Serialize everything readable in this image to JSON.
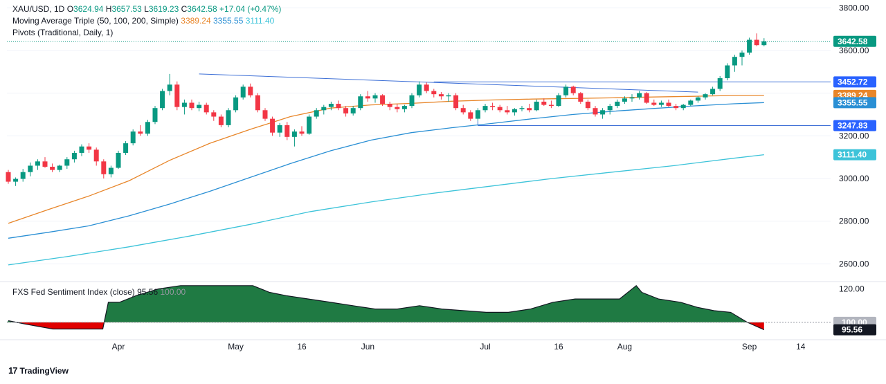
{
  "header": {
    "symbol": "XAU/USD, 1D",
    "o_label": "O",
    "o_value": "3624.94",
    "h_label": "H",
    "h_value": "3657.53",
    "l_label": "L",
    "l_value": "3619.23",
    "c_label": "C",
    "c_value": "3642.58",
    "change": "+17.04 (+0.47%)",
    "ma_label": "Moving Average Triple (50, 100, 200, Simple)",
    "ma50_value": "3389.24",
    "ma100_value": "3355.55",
    "ma200_value": "3111.40",
    "pivots_label": "Pivots (Traditional, Daily, 1)"
  },
  "sentiment": {
    "label": "FXS Fed Sentiment Index (close)",
    "value": "95.56",
    "ref_value": "100.00"
  },
  "brand": {
    "name": "TradingView"
  },
  "colors": {
    "up": "#089981",
    "down": "#f23645",
    "ma50": "#e8862a",
    "ma100": "#2a8fd4",
    "ma200": "#3cc3d9",
    "trendline": "#3d6fd6",
    "sentiment_fill": "#1f7a43",
    "sentiment_neg": "#e00000"
  },
  "chart_data": [
    {
      "type": "candlestick",
      "title": "XAU/USD, 1D",
      "ylim": [
        2520,
        3830
      ],
      "y_ticks": [
        2600,
        2800,
        3000,
        3200,
        3400,
        3600,
        3800
      ],
      "x_ticks": [
        "Apr",
        "May",
        "16",
        "Jun",
        "Jul",
        "16",
        "Aug",
        "Sep",
        "14"
      ],
      "price_badges": [
        {
          "value": "3642.58",
          "color": "#089981"
        },
        {
          "value": "3452.72",
          "color": "#2962ff"
        },
        {
          "value": "3389.24",
          "color": "#e8862a"
        },
        {
          "value": "3355.55",
          "color": "#2a8fd4"
        },
        {
          "value": "3247.83",
          "color": "#2962ff"
        },
        {
          "value": "3111.40",
          "color": "#3cc3d9"
        }
      ],
      "horizontal_levels": [
        3452.72,
        3247.83
      ],
      "last_price": 3642.58,
      "series": [
        {
          "name": "Moving Average 50",
          "key": "ma50",
          "x": [
            0,
            20,
            40,
            60,
            80,
            100,
            120,
            140,
            160,
            180,
            200,
            220,
            240,
            260,
            280,
            300,
            320,
            340,
            360,
            375
          ],
          "y": [
            2790,
            2855,
            2918,
            2990,
            3085,
            3165,
            3230,
            3290,
            3330,
            3345,
            3352,
            3362,
            3368,
            3372,
            3375,
            3378,
            3382,
            3385,
            3389,
            3389.24
          ]
        },
        {
          "name": "Moving Average 100",
          "key": "ma100",
          "x": [
            0,
            20,
            40,
            60,
            80,
            100,
            120,
            140,
            160,
            180,
            200,
            220,
            240,
            260,
            280,
            300,
            320,
            340,
            360,
            375
          ],
          "y": [
            2720,
            2748,
            2778,
            2825,
            2880,
            2940,
            3005,
            3070,
            3130,
            3180,
            3215,
            3238,
            3258,
            3280,
            3300,
            3315,
            3328,
            3340,
            3350,
            3355.55
          ]
        },
        {
          "name": "Moving Average 200",
          "key": "ma200",
          "x": [
            0,
            30,
            60,
            90,
            120,
            150,
            180,
            210,
            240,
            270,
            300,
            330,
            360,
            375
          ],
          "y": [
            2595,
            2635,
            2680,
            2730,
            2785,
            2845,
            2890,
            2930,
            2965,
            3000,
            3030,
            3060,
            3095,
            3111.4
          ]
        }
      ],
      "candles": [
        [
          3030,
          3040,
          2975,
          2985
        ],
        [
          2985,
          3005,
          2965,
          2998
        ],
        [
          2998,
          3045,
          2985,
          3030
        ],
        [
          3030,
          3075,
          3010,
          3060
        ],
        [
          3060,
          3090,
          3040,
          3080
        ],
        [
          3080,
          3100,
          3050,
          3055
        ],
        [
          3055,
          3070,
          3030,
          3040
        ],
        [
          3040,
          3065,
          3030,
          3060
        ],
        [
          3060,
          3100,
          3045,
          3090
        ],
        [
          3090,
          3130,
          3075,
          3120
        ],
        [
          3120,
          3160,
          3105,
          3150
        ],
        [
          3150,
          3165,
          3120,
          3135
        ],
        [
          3135,
          3145,
          3060,
          3080
        ],
        [
          3080,
          3090,
          3000,
          3020
        ],
        [
          3020,
          3060,
          3005,
          3050
        ],
        [
          3050,
          3130,
          3045,
          3120
        ],
        [
          3120,
          3175,
          3110,
          3165
        ],
        [
          3165,
          3230,
          3155,
          3220
        ],
        [
          3220,
          3250,
          3200,
          3210
        ],
        [
          3210,
          3275,
          3200,
          3265
        ],
        [
          3265,
          3340,
          3255,
          3330
        ],
        [
          3330,
          3420,
          3320,
          3410
        ],
        [
          3410,
          3490,
          3390,
          3440
        ],
        [
          3440,
          3455,
          3320,
          3335
        ],
        [
          3335,
          3370,
          3300,
          3355
        ],
        [
          3355,
          3370,
          3320,
          3330
        ],
        [
          3330,
          3360,
          3315,
          3345
        ],
        [
          3345,
          3355,
          3300,
          3310
        ],
        [
          3310,
          3320,
          3270,
          3290
        ],
        [
          3290,
          3300,
          3240,
          3250
        ],
        [
          3250,
          3330,
          3240,
          3320
        ],
        [
          3320,
          3390,
          3310,
          3380
        ],
        [
          3380,
          3440,
          3370,
          3430
        ],
        [
          3430,
          3445,
          3380,
          3390
        ],
        [
          3390,
          3400,
          3310,
          3320
        ],
        [
          3320,
          3330,
          3270,
          3280
        ],
        [
          3280,
          3290,
          3200,
          3215
        ],
        [
          3215,
          3260,
          3195,
          3250
        ],
        [
          3250,
          3265,
          3180,
          3195
        ],
        [
          3195,
          3230,
          3150,
          3220
        ],
        [
          3220,
          3245,
          3200,
          3210
        ],
        [
          3210,
          3300,
          3205,
          3290
        ],
        [
          3290,
          3330,
          3280,
          3320
        ],
        [
          3320,
          3345,
          3300,
          3335
        ],
        [
          3335,
          3360,
          3320,
          3350
        ],
        [
          3350,
          3365,
          3320,
          3330
        ],
        [
          3330,
          3340,
          3290,
          3305
        ],
        [
          3305,
          3340,
          3295,
          3330
        ],
        [
          3330,
          3395,
          3320,
          3385
        ],
        [
          3385,
          3410,
          3360,
          3375
        ],
        [
          3375,
          3400,
          3355,
          3390
        ],
        [
          3390,
          3395,
          3340,
          3350
        ],
        [
          3350,
          3360,
          3320,
          3335
        ],
        [
          3335,
          3350,
          3310,
          3325
        ],
        [
          3325,
          3345,
          3310,
          3340
        ],
        [
          3340,
          3400,
          3330,
          3390
        ],
        [
          3390,
          3455,
          3380,
          3440
        ],
        [
          3440,
          3450,
          3400,
          3410
        ],
        [
          3410,
          3420,
          3380,
          3395
        ],
        [
          3395,
          3405,
          3370,
          3385
        ],
        [
          3385,
          3400,
          3360,
          3390
        ],
        [
          3390,
          3400,
          3320,
          3330
        ],
        [
          3330,
          3345,
          3300,
          3310
        ],
        [
          3310,
          3320,
          3270,
          3280
        ],
        [
          3280,
          3330,
          3270,
          3320
        ],
        [
          3320,
          3350,
          3310,
          3340
        ],
        [
          3340,
          3355,
          3320,
          3335
        ],
        [
          3335,
          3345,
          3310,
          3320
        ],
        [
          3320,
          3340,
          3300,
          3310
        ],
        [
          3310,
          3330,
          3295,
          3325
        ],
        [
          3325,
          3340,
          3315,
          3330
        ],
        [
          3330,
          3350,
          3310,
          3320
        ],
        [
          3320,
          3370,
          3315,
          3360
        ],
        [
          3360,
          3375,
          3340,
          3345
        ],
        [
          3345,
          3365,
          3330,
          3340
        ],
        [
          3340,
          3400,
          3335,
          3390
        ],
        [
          3390,
          3440,
          3380,
          3430
        ],
        [
          3430,
          3435,
          3390,
          3400
        ],
        [
          3400,
          3405,
          3350,
          3360
        ],
        [
          3360,
          3370,
          3320,
          3330
        ],
        [
          3330,
          3340,
          3290,
          3300
        ],
        [
          3300,
          3330,
          3280,
          3320
        ],
        [
          3320,
          3350,
          3300,
          3340
        ],
        [
          3340,
          3370,
          3330,
          3360
        ],
        [
          3360,
          3385,
          3350,
          3375
        ],
        [
          3375,
          3395,
          3360,
          3380
        ],
        [
          3380,
          3410,
          3370,
          3400
        ],
        [
          3400,
          3405,
          3350,
          3355
        ],
        [
          3355,
          3370,
          3340,
          3345
        ],
        [
          3345,
          3365,
          3335,
          3355
        ],
        [
          3355,
          3370,
          3335,
          3340
        ],
        [
          3340,
          3350,
          3320,
          3330
        ],
        [
          3330,
          3350,
          3320,
          3345
        ],
        [
          3345,
          3370,
          3340,
          3365
        ],
        [
          3365,
          3385,
          3355,
          3380
        ],
        [
          3380,
          3400,
          3370,
          3395
        ],
        [
          3395,
          3430,
          3390,
          3420
        ],
        [
          3420,
          3480,
          3410,
          3470
        ],
        [
          3470,
          3540,
          3460,
          3530
        ],
        [
          3530,
          3580,
          3500,
          3570
        ],
        [
          3570,
          3600,
          3530,
          3590
        ],
        [
          3590,
          3660,
          3580,
          3650
        ],
        [
          3650,
          3680,
          3620,
          3625
        ],
        [
          3625,
          3657.53,
          3619.23,
          3642.58
        ]
      ]
    },
    {
      "type": "area",
      "title": "FXS Fed Sentiment Index (close)",
      "ylim": [
        90,
        124
      ],
      "y_ticks": [
        100,
        120
      ],
      "reference_level": 100,
      "value_badges": [
        {
          "value": "100.00",
          "color": "#b2b5be"
        },
        {
          "value": "95.56",
          "color": "#131722"
        }
      ],
      "x": [
        0,
        3,
        8,
        13,
        17,
        18,
        20,
        23,
        27,
        31,
        33,
        35,
        38,
        41,
        44,
        47,
        50,
        54,
        58,
        62,
        66,
        70,
        74,
        78,
        82,
        86,
        90,
        94,
        98,
        102,
        106,
        110,
        113,
        114,
        117,
        121,
        124,
        127,
        130,
        133,
        136
      ],
      "y": [
        101,
        99,
        96,
        96,
        96,
        112,
        112,
        116,
        120,
        122,
        122,
        122,
        122,
        122,
        122,
        118,
        116,
        114,
        112,
        110,
        108,
        108,
        110,
        108,
        107,
        106,
        106,
        108,
        112,
        114,
        114,
        114,
        122,
        118,
        114,
        112,
        109,
        107,
        106,
        100,
        95.56
      ]
    }
  ]
}
